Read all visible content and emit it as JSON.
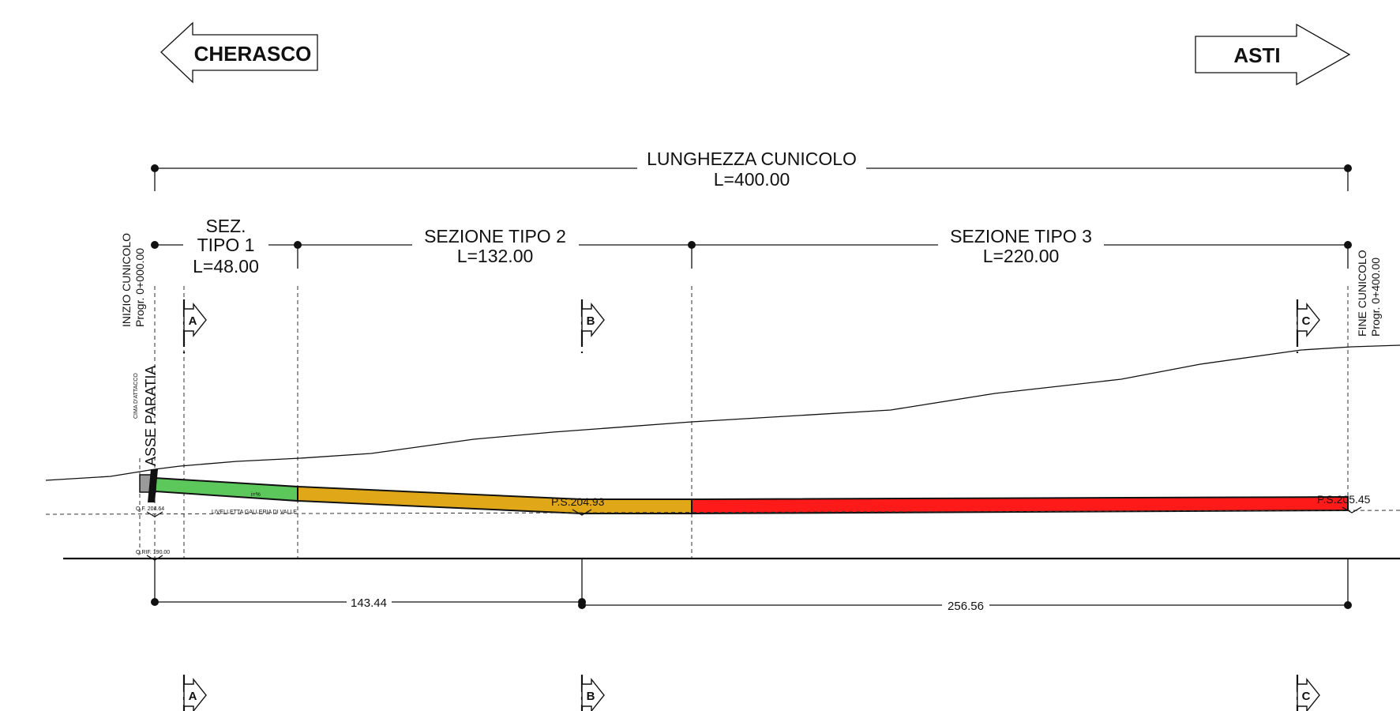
{
  "directions": {
    "left": "CHERASCO",
    "right": "ASTI"
  },
  "total_length": {
    "label": "LUNGHEZZA CUNICOLO",
    "value": "L=400.00"
  },
  "sections": [
    {
      "title_line1": "SEZ.",
      "title_line2": "TIPO 1",
      "length": "L=48.00"
    },
    {
      "title": "SEZIONE TIPO 2",
      "length": "L=132.00"
    },
    {
      "title": "SEZIONE TIPO 3",
      "length": "L=220.00"
    }
  ],
  "start": {
    "line1": "INIZIO CUNICOLO",
    "line2": "Progr. 0+000.00"
  },
  "end": {
    "line1": "FINE CUNICOLO",
    "line2": "Progr. 0+400.00"
  },
  "cut_markers": [
    "A",
    "B",
    "C"
  ],
  "asse_paratia": "ASSE PARATIA",
  "small_notes": {
    "cima_attacco": "CIMA D'ATTACCO",
    "livelletta": "LIVELLETTA GALLERIA DI VALLE",
    "qf_left": "Q.F. 204.64",
    "qrif": "Q.RIF. 190.00",
    "pendenza": "i=%"
  },
  "levels": {
    "ps_mid": "P.S.204.93",
    "ps_end": "P.S.205.45"
  },
  "dimensions": {
    "left": "143.44",
    "right": "256.56"
  },
  "colors": {
    "section1": "#5cc85c",
    "section2": "#e0a818",
    "section3": "#ff1a1a",
    "start_block": "#9a9a9a"
  }
}
